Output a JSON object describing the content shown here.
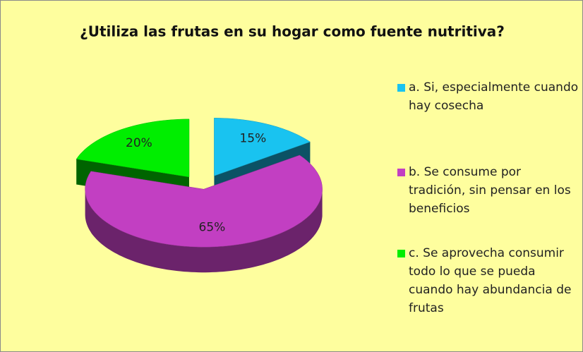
{
  "chart_data": {
    "type": "pie",
    "title": "¿Utiliza las frutas en su hogar como fuente nutritiva?",
    "categories": [
      "a. Si, especialmente cuando hay cosecha",
      "b. Se consume por tradición, sin pensar en los beneficios",
      "c. Se aprovecha consumir todo lo que se pueda cuando hay abundancia de frutas"
    ],
    "values": [
      15,
      65,
      20
    ],
    "value_labels": [
      "15%",
      "65%",
      "20%"
    ],
    "colors": [
      "#19c3f0",
      "#c23fc2",
      "#00ee00"
    ],
    "legend": "right"
  }
}
